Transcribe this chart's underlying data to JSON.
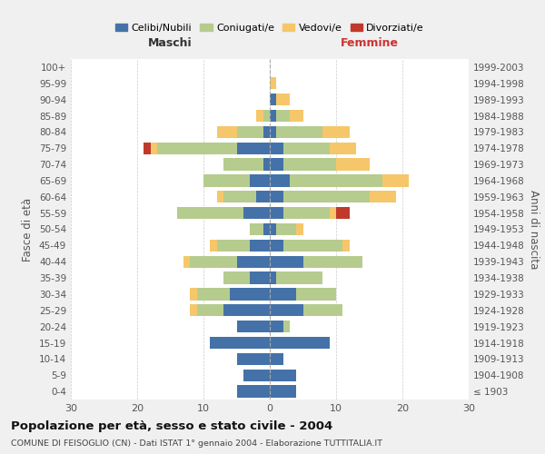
{
  "age_groups": [
    "100+",
    "95-99",
    "90-94",
    "85-89",
    "80-84",
    "75-79",
    "70-74",
    "65-69",
    "60-64",
    "55-59",
    "50-54",
    "45-49",
    "40-44",
    "35-39",
    "30-34",
    "25-29",
    "20-24",
    "15-19",
    "10-14",
    "5-9",
    "0-4"
  ],
  "birth_years": [
    "≤ 1903",
    "1904-1908",
    "1909-1913",
    "1914-1918",
    "1919-1923",
    "1924-1928",
    "1929-1933",
    "1934-1938",
    "1939-1943",
    "1944-1948",
    "1949-1953",
    "1954-1958",
    "1959-1963",
    "1964-1968",
    "1969-1973",
    "1974-1978",
    "1979-1983",
    "1984-1988",
    "1989-1993",
    "1994-1998",
    "1999-2003"
  ],
  "male": {
    "celibi": [
      0,
      0,
      0,
      0,
      1,
      5,
      1,
      3,
      2,
      4,
      1,
      3,
      5,
      3,
      6,
      7,
      5,
      9,
      5,
      4,
      5
    ],
    "coniugati": [
      0,
      0,
      0,
      1,
      4,
      12,
      6,
      7,
      5,
      10,
      2,
      5,
      7,
      4,
      5,
      4,
      0,
      0,
      0,
      0,
      0
    ],
    "vedovi": [
      0,
      0,
      0,
      1,
      3,
      1,
      0,
      0,
      1,
      0,
      0,
      1,
      1,
      0,
      1,
      1,
      0,
      0,
      0,
      0,
      0
    ],
    "divorziati": [
      0,
      0,
      0,
      0,
      0,
      1,
      0,
      0,
      0,
      0,
      0,
      0,
      0,
      0,
      0,
      0,
      0,
      0,
      0,
      0,
      0
    ]
  },
  "female": {
    "nubili": [
      0,
      0,
      1,
      1,
      1,
      2,
      2,
      3,
      2,
      2,
      1,
      2,
      5,
      1,
      4,
      5,
      2,
      9,
      2,
      4,
      4
    ],
    "coniugate": [
      0,
      0,
      0,
      2,
      7,
      7,
      8,
      14,
      13,
      7,
      3,
      9,
      9,
      7,
      6,
      6,
      1,
      0,
      0,
      0,
      0
    ],
    "vedove": [
      0,
      1,
      2,
      2,
      4,
      4,
      5,
      4,
      4,
      1,
      1,
      1,
      0,
      0,
      0,
      0,
      0,
      0,
      0,
      0,
      0
    ],
    "divorziate": [
      0,
      0,
      0,
      0,
      0,
      0,
      0,
      0,
      0,
      2,
      0,
      0,
      0,
      0,
      0,
      0,
      0,
      0,
      0,
      0,
      0
    ]
  },
  "colors": {
    "celibi_nubili": "#4472a8",
    "coniugati": "#b5cc8e",
    "vedovi": "#f5c76a",
    "divorziati": "#c0392b"
  },
  "xlim": 30,
  "title": "Popolazione per età, sesso e stato civile - 2004",
  "subtitle": "COMUNE DI FEISOGLIO (CN) - Dati ISTAT 1° gennaio 2004 - Elaborazione TUTTITALIA.IT",
  "ylabel_left": "Fasce di età",
  "ylabel_right": "Anni di nascita",
  "xlabel_left": "Maschi",
  "xlabel_right": "Femmine",
  "bg_color": "#f0f0f0",
  "plot_bg_color": "#ffffff"
}
